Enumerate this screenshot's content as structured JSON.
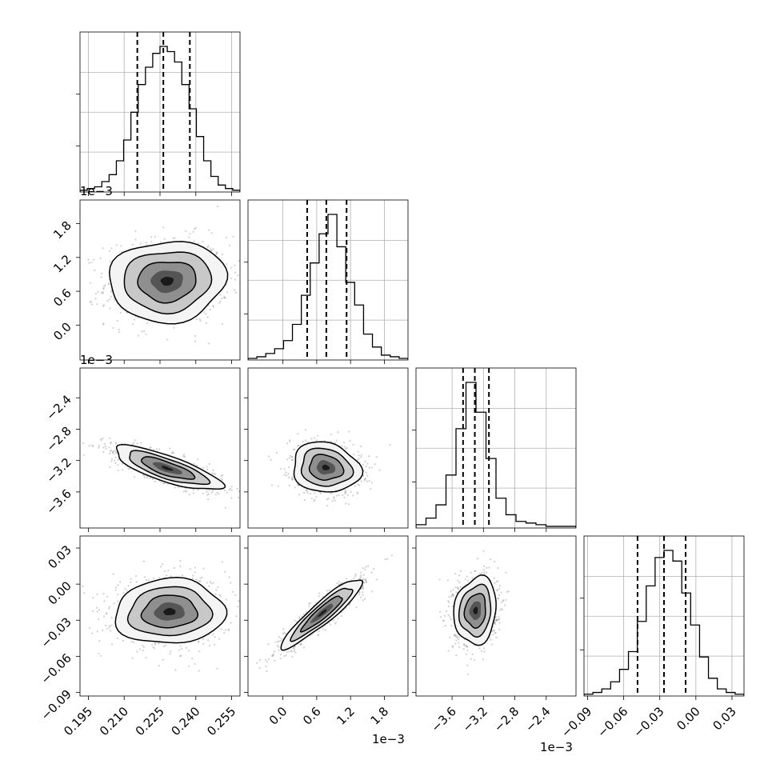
{
  "chart_data": {
    "type": "corner",
    "grid": true,
    "parameters": [
      {
        "range": [
          0.1915,
          0.2585
        ],
        "ticks": [
          "0.195",
          "0.210",
          "0.225",
          "0.240",
          "0.255"
        ],
        "tick_values": [
          0.195,
          0.21,
          0.225,
          0.24,
          0.255
        ],
        "offset": ""
      },
      {
        "range": [
          -0.62,
          2.22
        ],
        "ticks": [
          "0.0",
          "0.6",
          "1.2",
          "1.8"
        ],
        "tick_values": [
          0.0,
          0.6,
          1.2,
          1.8
        ],
        "offset": "1e−3"
      },
      {
        "range": [
          -4.06,
          -2.02
        ],
        "ticks": [
          "−3.6",
          "−3.2",
          "−2.8",
          "−2.4"
        ],
        "tick_values": [
          -3.6,
          -3.2,
          -2.8,
          -2.4
        ],
        "offset": "1e−3"
      },
      {
        "range": [
          -0.093,
          0.04
        ],
        "ticks": [
          "−0.09",
          "−0.06",
          "−0.03",
          "0.00",
          "0.03"
        ],
        "tick_values": [
          -0.09,
          -0.06,
          -0.03,
          0.0,
          0.03
        ],
        "offset": ""
      }
    ],
    "quantiles": [
      [
        0.2155,
        0.2264,
        0.2375
      ],
      [
        0.43,
        0.77,
        1.13
      ],
      [
        -3.46,
        -3.31,
        -3.13
      ],
      [
        -0.0485,
        -0.0265,
        -0.0085
      ]
    ],
    "histograms": [
      {
        "bin_start": 0.1915,
        "bin_end": 0.2585,
        "counts": [
          1,
          2,
          3,
          6,
          10,
          18,
          30,
          46,
          62,
          72,
          80,
          84,
          81,
          75,
          62,
          48,
          32,
          18,
          9,
          4,
          2,
          1
        ]
      },
      {
        "bin_start": -0.62,
        "bin_end": 2.22,
        "counts": [
          1,
          2,
          4,
          7,
          12,
          22,
          40,
          60,
          78,
          90,
          70,
          48,
          34,
          16,
          8,
          3,
          2,
          1
        ]
      },
      {
        "bin_start": -4.06,
        "bin_end": -2.02,
        "counts": [
          2,
          6,
          14,
          32,
          60,
          88,
          70,
          42,
          18,
          8,
          4,
          3,
          2,
          1,
          1,
          1
        ]
      },
      {
        "bin_start": -0.093,
        "bin_end": 0.04,
        "counts": [
          1,
          2,
          4,
          8,
          15,
          25,
          42,
          62,
          78,
          82,
          76,
          58,
          40,
          22,
          10,
          4,
          2,
          1
        ]
      }
    ],
    "pairs": [
      {
        "x": 0,
        "y": 1,
        "center": [
          0.228,
          0.78
        ],
        "sigma": [
          0.0122,
          0.36
        ],
        "rho": 0.05
      },
      {
        "x": 0,
        "y": 2,
        "center": [
          0.228,
          -3.3
        ],
        "sigma": [
          0.0112,
          0.14
        ],
        "rho": -0.78
      },
      {
        "x": 1,
        "y": 2,
        "center": [
          0.76,
          -3.29
        ],
        "sigma": [
          0.3,
          0.16
        ],
        "rho": -0.12
      },
      {
        "x": 0,
        "y": 3,
        "center": [
          0.229,
          -0.023
        ],
        "sigma": [
          0.0115,
          0.0135
        ],
        "rho": 0.05
      },
      {
        "x": 1,
        "y": 3,
        "center": [
          0.7,
          -0.024
        ],
        "sigma": [
          0.36,
          0.0145
        ],
        "rho": 0.92
      },
      {
        "x": 2,
        "y": 3,
        "center": [
          -3.3,
          -0.022
        ],
        "sigma": [
          0.135,
          0.014
        ],
        "rho": 0.12
      }
    ]
  }
}
